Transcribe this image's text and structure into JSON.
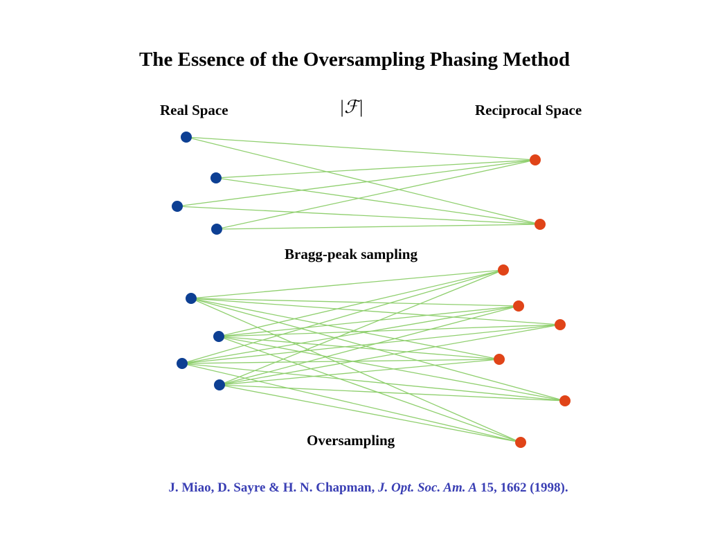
{
  "title": "The Essence of the Oversampling Phasing Method",
  "real_space_label": "Real Space",
  "reciprocal_space_label": "Reciprocal Space",
  "transform_symbol": "|ℱ|",
  "bragg_label": "Bragg-peak sampling",
  "oversampling_label": "Oversampling",
  "citation": {
    "authors": "J. Miao, D. Sayre & H. N. Chapman,",
    "journal": "J. Opt. Soc. Am. A",
    "details": "15, 1662 (1998)."
  },
  "colors": {
    "real_node": "#0d3f93",
    "reciprocal_node": "#e04418",
    "edge": "#8fcf6e",
    "citation": "#3a3fb4"
  },
  "diagrams": [
    {
      "name": "bragg-peak-sampling",
      "real_nodes": 4,
      "reciprocal_nodes": 2,
      "fully_connected": true
    },
    {
      "name": "oversampling",
      "real_nodes": 4,
      "reciprocal_nodes": 6,
      "fully_connected": true
    }
  ]
}
